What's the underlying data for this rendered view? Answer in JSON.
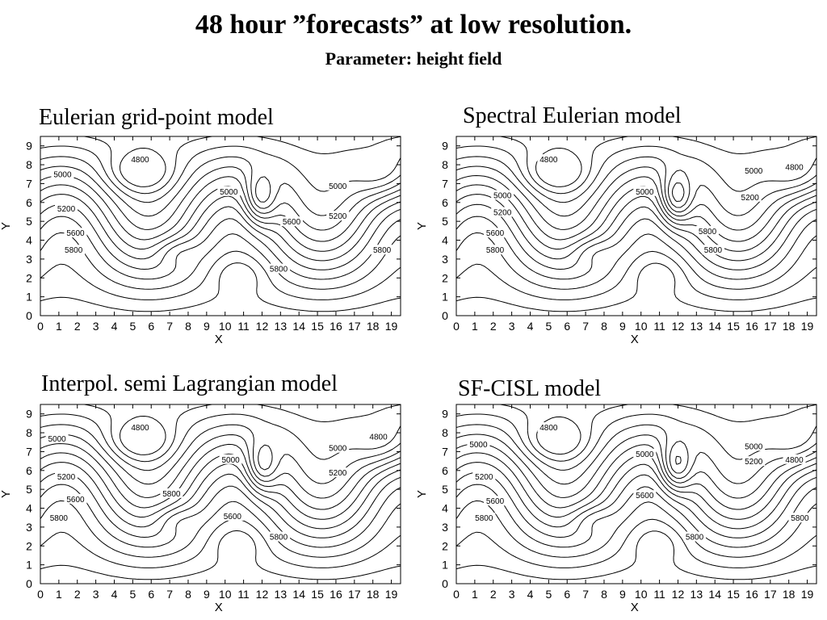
{
  "title": "48 hour ”forecasts” at low resolution.",
  "subtitle": "Parameter: height field",
  "chart_data": [
    {
      "type": "contour",
      "title": "Eulerian grid-point model",
      "xlabel": "X",
      "ylabel": "Y",
      "xlim": [
        0,
        19.5
      ],
      "ylim": [
        0,
        9.5
      ],
      "xticks": [
        0,
        1,
        2,
        3,
        4,
        5,
        6,
        7,
        8,
        9,
        10,
        11,
        12,
        13,
        14,
        15,
        16,
        17,
        18,
        19
      ],
      "yticks": [
        0,
        1,
        2,
        3,
        4,
        5,
        6,
        7,
        8,
        9
      ],
      "contour_labels": [
        {
          "text": "4800",
          "x": 5.4,
          "y": 8.3
        },
        {
          "text": "5000",
          "x": 1.2,
          "y": 7.5
        },
        {
          "text": "5000",
          "x": 10.2,
          "y": 6.6
        },
        {
          "text": "5000",
          "x": 16.1,
          "y": 6.9
        },
        {
          "text": "5200",
          "x": 1.4,
          "y": 5.7
        },
        {
          "text": "5200",
          "x": 16.1,
          "y": 5.3
        },
        {
          "text": "5600",
          "x": 13.6,
          "y": 5.0
        },
        {
          "text": "5600",
          "x": 1.9,
          "y": 4.4
        },
        {
          "text": "5800",
          "x": 1.8,
          "y": 3.5
        },
        {
          "text": "5800",
          "x": 18.5,
          "y": 3.5
        },
        {
          "text": "5800",
          "x": 12.9,
          "y": 2.5
        }
      ]
    },
    {
      "type": "contour",
      "title": "Spectral Eulerian model",
      "xlabel": "X",
      "ylabel": "Y",
      "xlim": [
        0,
        19.5
      ],
      "ylim": [
        0,
        9.5
      ],
      "xticks": [
        0,
        1,
        2,
        3,
        4,
        5,
        6,
        7,
        8,
        9,
        10,
        11,
        12,
        13,
        14,
        15,
        16,
        17,
        18,
        19
      ],
      "yticks": [
        0,
        1,
        2,
        3,
        4,
        5,
        6,
        7,
        8,
        9
      ],
      "contour_labels": [
        {
          "text": "4800",
          "x": 5.0,
          "y": 8.3
        },
        {
          "text": "4800",
          "x": 18.3,
          "y": 7.9
        },
        {
          "text": "5000",
          "x": 16.1,
          "y": 7.7
        },
        {
          "text": "5000",
          "x": 10.2,
          "y": 6.6
        },
        {
          "text": "5000",
          "x": 2.5,
          "y": 6.4
        },
        {
          "text": "5200",
          "x": 2.5,
          "y": 5.5
        },
        {
          "text": "5200",
          "x": 15.9,
          "y": 6.3
        },
        {
          "text": "5600",
          "x": 2.1,
          "y": 4.4
        },
        {
          "text": "5800",
          "x": 2.1,
          "y": 3.5
        },
        {
          "text": "5800",
          "x": 13.6,
          "y": 4.5
        },
        {
          "text": "5800",
          "x": 13.9,
          "y": 3.5
        }
      ]
    },
    {
      "type": "contour",
      "title": "Interpol. semi Lagrangian model",
      "xlabel": "X",
      "ylabel": "Y",
      "xlim": [
        0,
        19.5
      ],
      "ylim": [
        0,
        9.5
      ],
      "xticks": [
        0,
        1,
        2,
        3,
        4,
        5,
        6,
        7,
        8,
        9,
        10,
        11,
        12,
        13,
        14,
        15,
        16,
        17,
        18,
        19
      ],
      "yticks": [
        0,
        1,
        2,
        3,
        4,
        5,
        6,
        7,
        8,
        9
      ],
      "contour_labels": [
        {
          "text": "4800",
          "x": 5.4,
          "y": 8.3
        },
        {
          "text": "4800",
          "x": 18.3,
          "y": 7.8
        },
        {
          "text": "5000",
          "x": 0.9,
          "y": 7.7
        },
        {
          "text": "5000",
          "x": 10.3,
          "y": 6.6
        },
        {
          "text": "5000",
          "x": 16.1,
          "y": 7.2
        },
        {
          "text": "5200",
          "x": 1.4,
          "y": 5.7
        },
        {
          "text": "5200",
          "x": 16.1,
          "y": 5.9
        },
        {
          "text": "5600",
          "x": 1.9,
          "y": 4.5
        },
        {
          "text": "5600",
          "x": 10.4,
          "y": 3.6
        },
        {
          "text": "5800",
          "x": 7.1,
          "y": 4.8
        },
        {
          "text": "5800",
          "x": 1.0,
          "y": 3.5
        },
        {
          "text": "5800",
          "x": 12.9,
          "y": 2.5
        }
      ]
    },
    {
      "type": "contour",
      "title": "SF-CISL model",
      "xlabel": "X",
      "ylabel": "Y",
      "xlim": [
        0,
        19.5
      ],
      "ylim": [
        0,
        9.5
      ],
      "xticks": [
        0,
        1,
        2,
        3,
        4,
        5,
        6,
        7,
        8,
        9,
        10,
        11,
        12,
        13,
        14,
        15,
        16,
        17,
        18,
        19
      ],
      "yticks": [
        0,
        1,
        2,
        3,
        4,
        5,
        6,
        7,
        8,
        9
      ],
      "contour_labels": [
        {
          "text": "4800",
          "x": 5.0,
          "y": 8.3
        },
        {
          "text": "4800",
          "x": 18.3,
          "y": 6.6
        },
        {
          "text": "5000",
          "x": 1.2,
          "y": 7.4
        },
        {
          "text": "5000",
          "x": 10.2,
          "y": 6.9
        },
        {
          "text": "5000",
          "x": 16.1,
          "y": 7.3
        },
        {
          "text": "5200",
          "x": 1.5,
          "y": 5.7
        },
        {
          "text": "5200",
          "x": 16.1,
          "y": 6.5
        },
        {
          "text": "5600",
          "x": 2.1,
          "y": 4.4
        },
        {
          "text": "5600",
          "x": 10.2,
          "y": 4.7
        },
        {
          "text": "5800",
          "x": 1.5,
          "y": 3.5
        },
        {
          "text": "5800",
          "x": 18.6,
          "y": 3.5
        },
        {
          "text": "5800",
          "x": 12.9,
          "y": 2.5
        }
      ]
    }
  ]
}
